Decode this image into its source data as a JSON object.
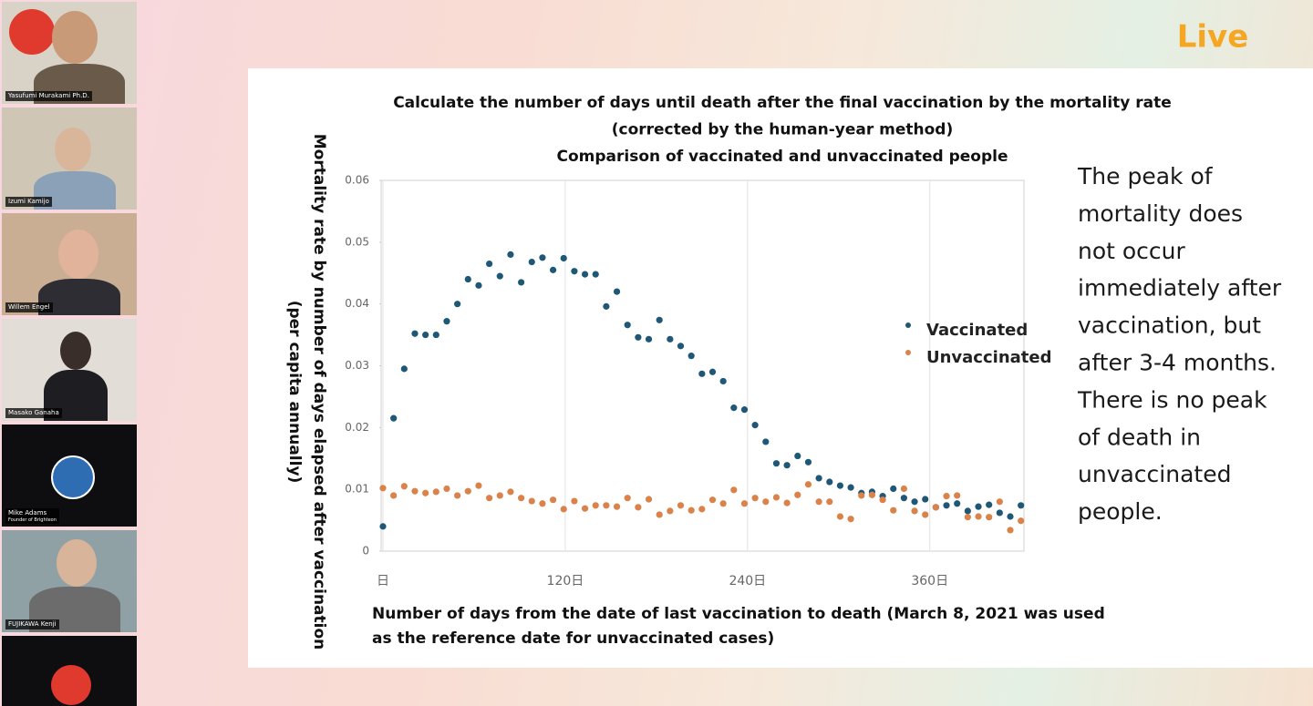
{
  "participants": [
    {
      "name": "Yasufumi Murakami Ph.D."
    },
    {
      "name": "Izumi Kamijo"
    },
    {
      "name": "Willem Engel"
    },
    {
      "name": "Masako Ganaha"
    },
    {
      "name": "Mike Adams",
      "subtitle": "Founder of Brighteon"
    },
    {
      "name": "FUJIKAWA Kenji"
    }
  ],
  "logo": "Live",
  "slide_text": [
    "The peak of",
    "mortality does",
    "not occur",
    "immediately after",
    "vaccination, but",
    "after 3-4 months.",
    "There is no peak",
    "of death in",
    "unvaccinated",
    "people."
  ],
  "chart_data": {
    "type": "scatter",
    "title": [
      "Calculate the number of days until death after the final vaccination by the mortality rate",
      "(corrected by the human-year method)",
      "Comparison of vaccinated and unvaccinated people"
    ],
    "ylabel": [
      "Mortality rate by number of days elapsed after vaccination",
      "(per capita annually)"
    ],
    "xlabel": [
      "Number of days from the date of last vaccination to death (March 8, 2021 was used",
      "as the reference date for unvaccinated cases)"
    ],
    "x": [
      0,
      7,
      14,
      21,
      28,
      35,
      42,
      49,
      56,
      63,
      70,
      77,
      84,
      91,
      98,
      105,
      112,
      119,
      126,
      133,
      140,
      147,
      154,
      161,
      168,
      175,
      182,
      189,
      196,
      203,
      210,
      217,
      224,
      231,
      238,
      245,
      252,
      259,
      266,
      273,
      280,
      287,
      294,
      301,
      308,
      315,
      322,
      329,
      336,
      343,
      350,
      357,
      364,
      371,
      378,
      385,
      392,
      399,
      406,
      413,
      420
    ],
    "series": [
      {
        "name": "Vaccinated",
        "color": "#1f5877",
        "values": [
          0.004,
          0.0215,
          0.0295,
          0.0352,
          0.035,
          0.035,
          0.0372,
          0.04,
          0.044,
          0.043,
          0.0465,
          0.0445,
          0.048,
          0.0435,
          0.0468,
          0.0475,
          0.0455,
          0.0474,
          0.0453,
          0.0448,
          0.0448,
          0.0396,
          0.042,
          0.0366,
          0.0346,
          0.0343,
          0.0374,
          0.0343,
          0.0332,
          0.0316,
          0.0287,
          0.029,
          0.0275,
          0.0232,
          0.0229,
          0.0204,
          0.0177,
          0.0142,
          0.0139,
          0.0154,
          0.0144,
          0.0118,
          0.0112,
          0.0106,
          0.0103,
          0.0094,
          0.0096,
          0.0089,
          0.0101,
          0.0086,
          0.008,
          0.0084,
          0.0071,
          0.0074,
          0.0077,
          0.0065,
          0.0072,
          0.0075,
          0.0062,
          0.0056,
          0.0074
        ]
      },
      {
        "name": "Unvaccinated",
        "color": "#d9834a",
        "values": [
          0.0102,
          0.009,
          0.0105,
          0.0097,
          0.0094,
          0.0096,
          0.0101,
          0.009,
          0.0097,
          0.0106,
          0.0086,
          0.009,
          0.0096,
          0.0086,
          0.0081,
          0.0077,
          0.0083,
          0.0068,
          0.0081,
          0.0069,
          0.0074,
          0.0074,
          0.0072,
          0.0086,
          0.0071,
          0.0084,
          0.0059,
          0.0065,
          0.0074,
          0.0066,
          0.0068,
          0.0083,
          0.0077,
          0.0099,
          0.0077,
          0.0086,
          0.008,
          0.0087,
          0.0078,
          0.0091,
          0.0108,
          0.008,
          0.008,
          0.0056,
          0.0052,
          0.009,
          0.0091,
          0.0083,
          0.0066,
          0.0101,
          0.0065,
          0.0059,
          0.0071,
          0.0089,
          0.009,
          0.0055,
          0.0056,
          0.0055,
          0.008,
          0.0034,
          0.0049
        ]
      }
    ],
    "xlim": [
      0,
      422
    ],
    "xticks": [
      {
        "value": 0,
        "label": "日"
      },
      {
        "value": 120,
        "label": "120日"
      },
      {
        "value": 240,
        "label": "240日"
      },
      {
        "value": 360,
        "label": "360日"
      }
    ],
    "ylim": [
      0,
      0.06
    ],
    "yticks": [
      0,
      0.01,
      0.02,
      0.03,
      0.04,
      0.05,
      0.06
    ],
    "xgrid": true
  }
}
